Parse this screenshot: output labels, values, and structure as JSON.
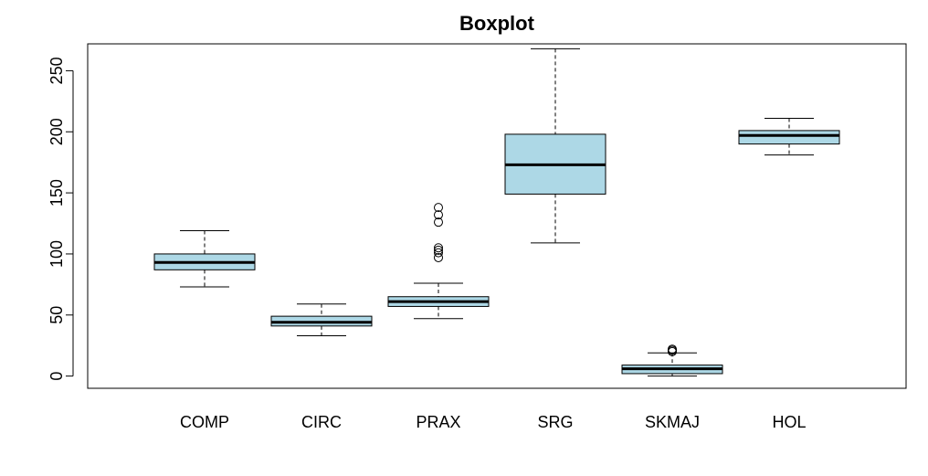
{
  "chart_data": {
    "type": "boxplot",
    "title": "Boxplot",
    "xlabel": "",
    "ylabel": "",
    "ylim": [
      -10,
      272
    ],
    "y_ticks": [
      0,
      50,
      100,
      150,
      200,
      250
    ],
    "grid": false,
    "box_fill": "#add8e6",
    "categories": [
      "COMP",
      "CIRC",
      "PRAX",
      "SRG",
      "SKMAJ",
      "HOL"
    ],
    "boxes": [
      {
        "name": "COMP",
        "whisker_low": 73,
        "q1": 87,
        "median": 93,
        "q3": 100,
        "whisker_high": 119,
        "outliers": []
      },
      {
        "name": "CIRC",
        "whisker_low": 33,
        "q1": 41,
        "median": 44,
        "q3": 49,
        "whisker_high": 59,
        "outliers": []
      },
      {
        "name": "PRAX",
        "whisker_low": 47,
        "q1": 57,
        "median": 61,
        "q3": 65,
        "whisker_high": 76,
        "outliers": [
          97,
          101,
          103,
          105,
          126,
          132,
          138
        ]
      },
      {
        "name": "SRG",
        "whisker_low": 109,
        "q1": 149,
        "median": 173,
        "q3": 198,
        "whisker_high": 268,
        "outliers": []
      },
      {
        "name": "SKMAJ",
        "whisker_low": 0,
        "q1": 2,
        "median": 6,
        "q3": 9,
        "whisker_high": 19,
        "outliers": [
          20,
          21,
          22
        ]
      },
      {
        "name": "HOL",
        "whisker_low": 181,
        "q1": 190,
        "median": 197,
        "q3": 201,
        "whisker_high": 211,
        "outliers": []
      }
    ]
  }
}
